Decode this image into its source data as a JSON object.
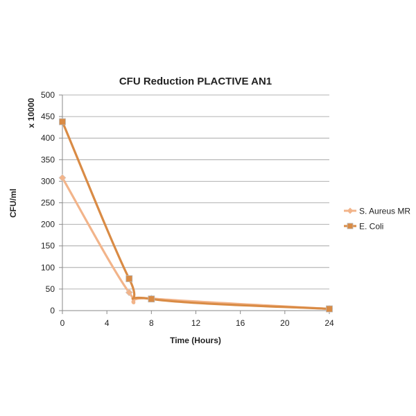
{
  "chart_data": {
    "type": "line",
    "title": "CFU Reduction PLACTIVE AN1",
    "xlabel": "Time (Hours)",
    "ylabel": "CFU/ml",
    "ylabel_multiplier": "x 10000",
    "xlim": [
      0,
      24
    ],
    "ylim": [
      0,
      500
    ],
    "x_ticks": [
      0,
      4,
      8,
      12,
      16,
      20,
      24
    ],
    "y_ticks": [
      0,
      50,
      100,
      150,
      200,
      250,
      300,
      350,
      400,
      450,
      500
    ],
    "grid": "horizontal",
    "legend_position": "right",
    "series": [
      {
        "name": "S. Aureus MR",
        "color": "#F2B48A",
        "marker": "diamond",
        "x": [
          0,
          6,
          8,
          24
        ],
        "y": [
          308,
          42,
          28,
          4
        ]
      },
      {
        "name": "E. Coli",
        "color": "#D98B45",
        "marker": "square",
        "x": [
          0,
          6,
          8,
          24
        ],
        "y": [
          438,
          74,
          27,
          4
        ]
      }
    ]
  }
}
